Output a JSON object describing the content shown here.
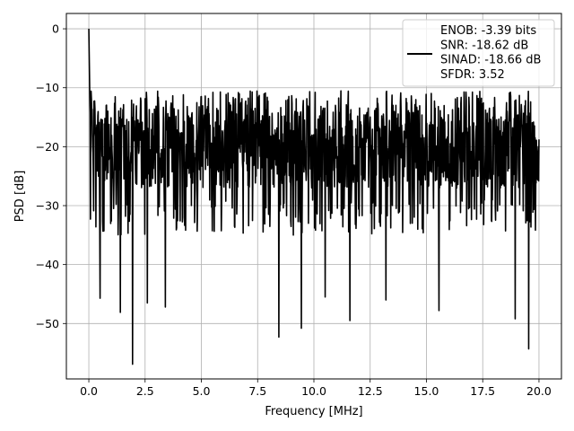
{
  "chart_data": {
    "type": "line",
    "title": "",
    "xlabel": "Frequency [MHz]",
    "ylabel": "PSD [dB]",
    "xlim": [
      -0.998,
      20.998
    ],
    "ylim": [
      -59.4,
      2.6
    ],
    "grid": true,
    "x_ticks": [
      0.0,
      2.5,
      5.0,
      7.5,
      10.0,
      12.5,
      15.0,
      17.5,
      20.0
    ],
    "x_tick_labels": [
      "0.0",
      "2.5",
      "5.0",
      "7.5",
      "10.0",
      "12.5",
      "15.0",
      "17.5",
      "20.0"
    ],
    "y_ticks": [
      0,
      -10,
      -20,
      -30,
      -40,
      -50
    ],
    "y_tick_labels": [
      "0",
      "−10",
      "−20",
      "−30",
      "−40",
      "−50"
    ],
    "legend_position": "top-right",
    "line_color": "#000000",
    "legend": {
      "lines": [
        "ENOB: -3.39 bits",
        "SNR: -18.62 dB",
        "SINAD: -18.66 dB",
        "SFDR: 3.52"
      ]
    },
    "series": [
      {
        "noise_floor_db": -20,
        "noise_band_db": [
          -13,
          -29
        ],
        "peak": {
          "x": 0.0,
          "y": 0.0
        },
        "x_range": [
          0.0,
          20.0
        ],
        "dips": [
          {
            "x": 0.5,
            "y": -45.7
          },
          {
            "x": 1.4,
            "y": -48.1
          },
          {
            "x": 1.95,
            "y": -56.9
          },
          {
            "x": 2.6,
            "y": -46.5
          },
          {
            "x": 3.4,
            "y": -47.2
          },
          {
            "x": 8.45,
            "y": -52.3
          },
          {
            "x": 9.45,
            "y": -50.8
          },
          {
            "x": 10.5,
            "y": -45.5
          },
          {
            "x": 11.6,
            "y": -49.5
          },
          {
            "x": 13.2,
            "y": -46.0
          },
          {
            "x": 15.55,
            "y": -47.8
          },
          {
            "x": 18.95,
            "y": -49.2
          },
          {
            "x": 19.55,
            "y": -54.3
          }
        ]
      }
    ]
  }
}
